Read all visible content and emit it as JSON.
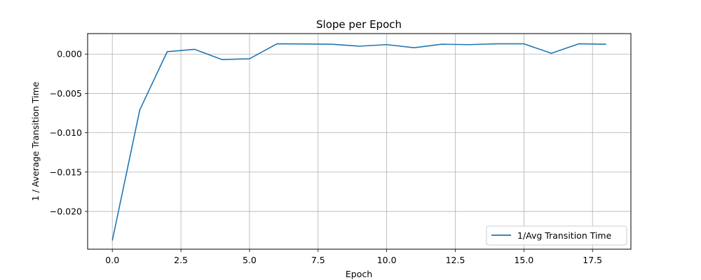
{
  "chart_data": {
    "type": "line",
    "title": "Slope per Epoch",
    "xlabel": "Epoch",
    "ylabel": "1 / Average Transition Time",
    "xlim": [
      -0.9,
      18.9
    ],
    "ylim": [
      -0.0248,
      0.0026
    ],
    "xticks": [
      0.0,
      2.5,
      5.0,
      7.5,
      10.0,
      12.5,
      15.0,
      17.5
    ],
    "xtick_labels": [
      "0.0",
      "2.5",
      "5.0",
      "7.5",
      "10.0",
      "12.5",
      "15.0",
      "17.5"
    ],
    "yticks": [
      0.0,
      -0.005,
      -0.01,
      -0.015,
      -0.02
    ],
    "ytick_labels": [
      "0.000",
      "−0.005",
      "−0.010",
      "−0.015",
      "−0.020"
    ],
    "grid": true,
    "legend_position": "bottom-right",
    "series": [
      {
        "name": "1/Avg Transition Time",
        "color": "#1f77b4",
        "x": [
          0,
          1,
          2,
          3,
          4,
          5,
          6,
          7,
          8,
          9,
          10,
          11,
          12,
          13,
          14,
          15,
          16,
          17,
          18
        ],
        "y": [
          -0.0237,
          -0.0071,
          0.0003,
          0.0006,
          -0.0007,
          -0.0006,
          0.0013,
          0.00128,
          0.00125,
          0.001,
          0.0012,
          0.0008,
          0.00125,
          0.0012,
          0.0013,
          0.0013,
          0.0001,
          0.0013,
          0.00125
        ]
      }
    ]
  }
}
